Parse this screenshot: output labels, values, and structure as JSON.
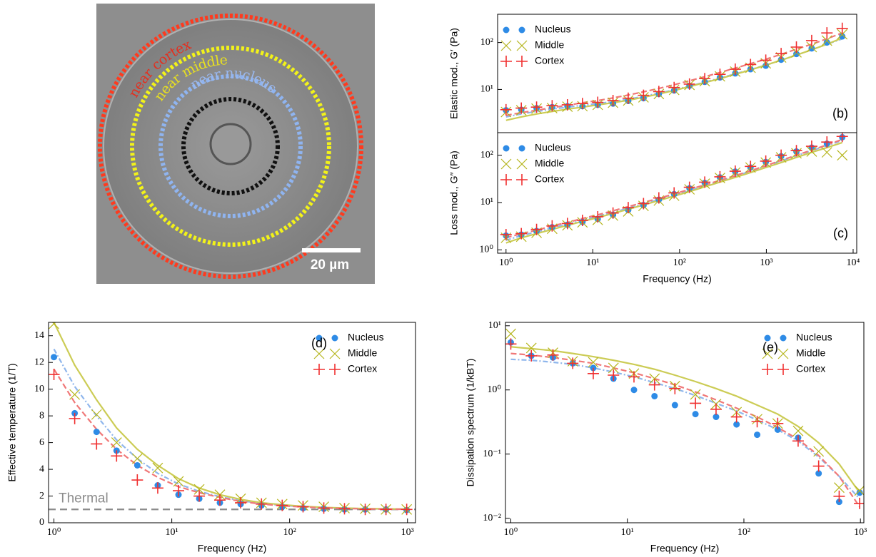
{
  "image": {
    "labels": [
      "near cortex",
      "near middle",
      "near nucleus"
    ],
    "scale_bar": "20 µm"
  },
  "chart_data": [
    {
      "type": "scatter",
      "panel": "(b)",
      "ylabel": "Elastic mod., G′ (Pa)",
      "log_x": true,
      "log_y": true,
      "legend": "upper left",
      "x": [
        1,
        1.5,
        2.25,
        3.4,
        5.1,
        7.6,
        11.4,
        17.1,
        25.6,
        38.4,
        57.7,
        86.5,
        130,
        195,
        292,
        438,
        657,
        985,
        1480,
        2220,
        3330,
        4990,
        7490
      ],
      "xlim": [
        0.8,
        11000
      ],
      "ylim": [
        1.2,
        400
      ],
      "yticks": [
        {
          "value": 10,
          "label": "10¹"
        },
        {
          "value": 100,
          "label": "10²"
        }
      ],
      "series": [
        {
          "name": "Nucleus",
          "color": "#2e8be6",
          "marker": "circle",
          "fit_color": "#8fb6ec",
          "fit_dash": "7 3 2 3",
          "values": [
            3.6,
            3.7,
            4.0,
            4.2,
            4.4,
            4.4,
            4.7,
            5.0,
            5.7,
            6.5,
            8,
            9.5,
            12,
            14.5,
            18,
            22,
            27,
            32,
            43,
            57,
            75,
            100,
            135
          ],
          "fit": [
            2.6,
            3.0,
            3.4,
            3.8,
            4.2,
            4.6,
            5.0,
            5.5,
            6.2,
            7.1,
            8.3,
            9.8,
            11.8,
            14.3,
            17.5,
            21.5,
            26.5,
            33,
            42,
            54,
            70,
            92,
            120
          ]
        },
        {
          "name": "Middle",
          "color": "#b5b51c",
          "marker": "x",
          "fit_color": "#cccc55",
          "fit_dash": "",
          "values": [
            3.3,
            3.6,
            3.9,
            4.0,
            4.3,
            4.4,
            4.7,
            5.2,
            5.8,
            6.8,
            8,
            9.8,
            12.5,
            15,
            19,
            24,
            29,
            36,
            48,
            62,
            80,
            110,
            150
          ],
          "fit": [
            2.2,
            2.6,
            3.0,
            3.4,
            3.8,
            4.2,
            4.7,
            5.2,
            5.9,
            6.8,
            8,
            9.5,
            11.5,
            14,
            17,
            21,
            26,
            33,
            42,
            54,
            70,
            92,
            125
          ]
        },
        {
          "name": "Cortex",
          "color": "#f03030",
          "marker": "plus",
          "fit_color": "#f07878",
          "fit_dash": "8 4",
          "values": [
            3.7,
            4.0,
            4.2,
            4.5,
            4.7,
            5.0,
            5.3,
            5.8,
            6.5,
            7.5,
            9,
            11,
            13,
            17,
            21,
            27,
            34,
            42,
            58,
            80,
            110,
            160,
            200
          ],
          "fit": [
            2.8,
            3.2,
            3.6,
            4.1,
            4.6,
            5.2,
            5.8,
            6.6,
            7.6,
            8.9,
            10.5,
            12.6,
            15.3,
            18.7,
            23,
            28.5,
            35.5,
            44,
            56,
            72,
            92,
            120,
            160
          ]
        }
      ]
    },
    {
      "type": "scatter",
      "panel": "(c)",
      "ylabel": "Loss mod., G″ (Pa)",
      "xlabel": "Frequency (Hz)",
      "log_x": true,
      "log_y": true,
      "legend": "upper left",
      "x": [
        1,
        1.5,
        2.25,
        3.4,
        5.1,
        7.6,
        11.4,
        17.1,
        25.6,
        38.4,
        57.7,
        86.5,
        130,
        195,
        292,
        438,
        657,
        985,
        1480,
        2220,
        3330,
        4990,
        7490
      ],
      "xlim": [
        0.8,
        11000
      ],
      "ylim": [
        0.85,
        300
      ],
      "xticks": [
        {
          "value": 1,
          "label": "10⁰"
        },
        {
          "value": 10,
          "label": "10¹"
        },
        {
          "value": 100,
          "label": "10²"
        },
        {
          "value": 1000,
          "label": "10³"
        },
        {
          "value": 10000,
          "label": "10⁴"
        }
      ],
      "yticks": [
        {
          "value": 1,
          "label": "10⁰"
        },
        {
          "value": 10,
          "label": "10¹"
        },
        {
          "value": 100,
          "label": "10²"
        }
      ],
      "series": [
        {
          "name": "Nucleus",
          "color": "#2e8be6",
          "marker": "circle",
          "fit_color": "#8fb6ec",
          "fit_dash": "7 3 2 3",
          "values": [
            2.0,
            2.1,
            2.5,
            3.0,
            3.4,
            3.9,
            4.5,
            5.5,
            7,
            8.8,
            11.5,
            15,
            20,
            26,
            34,
            45,
            55,
            72,
            95,
            120,
            145,
            175,
            240
          ],
          "fit": [
            1.6,
            2.0,
            2.4,
            2.9,
            3.5,
            4.2,
            5.1,
            6.2,
            7.6,
            9.3,
            11.5,
            14.3,
            18,
            22.5,
            28.5,
            36,
            46,
            59,
            76,
            98,
            125,
            160,
            205
          ]
        },
        {
          "name": "Middle",
          "color": "#b5b51c",
          "marker": "x",
          "fit_color": "#cccc55",
          "fit_dash": "",
          "values": [
            1.8,
            1.9,
            2.3,
            2.8,
            3.3,
            3.8,
            4.3,
            5.3,
            6.5,
            8.5,
            11,
            14,
            19,
            25,
            33,
            43,
            55,
            70,
            90,
            110,
            120,
            115,
            100
          ],
          "fit": [
            1.4,
            1.8,
            2.2,
            2.7,
            3.3,
            4.0,
            4.8,
            5.9,
            7.2,
            8.9,
            11,
            13.7,
            17,
            21.5,
            27,
            34,
            43,
            55,
            70,
            90,
            115,
            145,
            185
          ]
        },
        {
          "name": "Cortex",
          "color": "#f03030",
          "marker": "plus",
          "fit_color": "#f07878",
          "fit_dash": "8 4",
          "values": [
            2.1,
            2.2,
            2.7,
            3.2,
            3.6,
            4.2,
            5.0,
            6.0,
            7.8,
            9.5,
            12.5,
            16,
            21,
            27,
            35,
            46,
            58,
            75,
            100,
            125,
            155,
            190,
            250
          ],
          "fit": [
            1.8,
            2.2,
            2.6,
            3.2,
            3.8,
            4.6,
            5.5,
            6.7,
            8.2,
            10,
            12.3,
            15.2,
            19,
            23.5,
            29.5,
            37,
            47,
            60,
            78,
            100,
            128,
            165,
            215
          ]
        }
      ]
    },
    {
      "type": "scatter",
      "panel": "(d)",
      "ylabel": "Effective temperature (1/T)",
      "xlabel": "Frequency (Hz)",
      "log_x": true,
      "log_y": false,
      "legend": "upper right",
      "thermal": {
        "label": "Thermal",
        "value": 1,
        "color": "#8c8c8c"
      },
      "x": [
        1,
        1.5,
        2.3,
        3.4,
        5.1,
        7.6,
        11.4,
        17.1,
        25.6,
        38.4,
        57.7,
        86.5,
        130,
        195,
        292,
        438,
        657,
        985
      ],
      "xlim": [
        0.9,
        1170
      ],
      "ylim": [
        0,
        15
      ],
      "xticks": [
        {
          "value": 1,
          "label": "10⁰"
        },
        {
          "value": 10,
          "label": "10¹"
        },
        {
          "value": 100,
          "label": "10²"
        },
        {
          "value": 1000,
          "label": "10³"
        }
      ],
      "yticks": [
        0,
        2,
        4,
        6,
        8,
        10,
        12,
        14
      ],
      "series": [
        {
          "name": "Nucleus",
          "color": "#2e8be6",
          "marker": "circle",
          "fit_color": "#8fb6ec",
          "fit_dash": "7 3 2 3",
          "values": [
            12.4,
            8.2,
            6.8,
            5.4,
            4.3,
            2.8,
            2.1,
            1.8,
            1.5,
            1.4,
            1.3,
            1.2,
            1.1,
            1.05,
            1.0,
            1.0,
            1.0,
            0.95
          ],
          "fit": [
            13,
            10.2,
            8,
            6.2,
            4.8,
            3.7,
            2.9,
            2.35,
            1.95,
            1.65,
            1.45,
            1.3,
            1.2,
            1.13,
            1.08,
            1.05,
            1.03,
            1.02
          ]
        },
        {
          "name": "Middle",
          "color": "#b5b51c",
          "marker": "x",
          "fit_color": "#cccc55",
          "fit_dash": "",
          "values": [
            14.9,
            9.6,
            8.1,
            6.0,
            4.8,
            4.1,
            3.1,
            2.5,
            2.1,
            1.8,
            1.5,
            1.4,
            1.3,
            1.2,
            1.1,
            1.05,
            1.0,
            1.0
          ],
          "fit": [
            15,
            11.8,
            9.2,
            7.1,
            5.5,
            4.3,
            3.3,
            2.6,
            2.1,
            1.75,
            1.5,
            1.35,
            1.23,
            1.15,
            1.1,
            1.06,
            1.04,
            1.02
          ]
        },
        {
          "name": "Cortex",
          "color": "#f03030",
          "marker": "plus",
          "fit_color": "#f07878",
          "fit_dash": "8 4",
          "values": [
            11.1,
            7.8,
            5.9,
            5.0,
            3.2,
            2.6,
            2.4,
            2.0,
            1.7,
            1.5,
            1.4,
            1.3,
            1.2,
            1.1,
            1.05,
            1.0,
            1.0,
            1.0
          ],
          "fit": [
            11.5,
            9,
            7,
            5.5,
            4.3,
            3.4,
            2.7,
            2.25,
            1.9,
            1.6,
            1.4,
            1.27,
            1.18,
            1.11,
            1.07,
            1.04,
            1.02,
            1.01
          ]
        }
      ]
    },
    {
      "type": "scatter",
      "panel": "(e)",
      "ylabel": "Dissipation spectrum (1/kBT)",
      "xlabel": "Frequency (Hz)",
      "log_x": true,
      "log_y": true,
      "legend": "upper right",
      "x": [
        1,
        1.5,
        2.3,
        3.4,
        5.1,
        7.6,
        11.4,
        17.1,
        25.6,
        38.4,
        57.7,
        86.5,
        130,
        195,
        292,
        438,
        657,
        985
      ],
      "xlim": [
        0.9,
        1070
      ],
      "ylim": [
        0.0085,
        11.3
      ],
      "xticks": [
        {
          "value": 1,
          "label": "10⁰"
        },
        {
          "value": 10,
          "label": "10¹"
        },
        {
          "value": 100,
          "label": "10²"
        },
        {
          "value": 1000,
          "label": "10³"
        }
      ],
      "yticks": [
        {
          "value": 0.01,
          "label": "10⁻²"
        },
        {
          "value": 0.1,
          "label": "10⁻¹"
        },
        {
          "value": 1,
          "label": "10⁰"
        },
        {
          "value": 10,
          "label": "10¹"
        }
      ],
      "series": [
        {
          "name": "Nucleus",
          "color": "#2e8be6",
          "marker": "circle",
          "fit_color": "#8fb6ec",
          "fit_dash": "7 3 2 3",
          "values": [
            5.5,
            3.4,
            3.2,
            2.6,
            2.2,
            1.5,
            1.0,
            0.8,
            0.58,
            0.42,
            0.38,
            0.29,
            0.2,
            0.24,
            0.18,
            0.05,
            0.018,
            0.025
          ],
          "fit": [
            3.0,
            2.9,
            2.7,
            2.5,
            2.2,
            1.9,
            1.6,
            1.3,
            1.05,
            0.82,
            0.62,
            0.47,
            0.34,
            0.24,
            0.16,
            0.09,
            0.045,
            0.02
          ]
        },
        {
          "name": "Middle",
          "color": "#b5b51c",
          "marker": "x",
          "fit_color": "#cccc55",
          "fit_dash": "",
          "values": [
            7.5,
            4.5,
            3.8,
            2.8,
            2.7,
            2.2,
            1.8,
            1.5,
            1.15,
            0.85,
            0.6,
            0.45,
            0.35,
            0.3,
            0.23,
            0.11,
            0.03,
            0.027
          ],
          "fit": [
            4.7,
            4.4,
            4.1,
            3.7,
            3.3,
            2.9,
            2.5,
            2.1,
            1.7,
            1.35,
            1.05,
            0.8,
            0.58,
            0.42,
            0.27,
            0.15,
            0.07,
            0.025
          ]
        },
        {
          "name": "Cortex",
          "color": "#f03030",
          "marker": "plus",
          "fit_color": "#f07878",
          "fit_dash": "8 4",
          "values": [
            5.2,
            3.4,
            3.5,
            2.6,
            1.8,
            1.7,
            1.6,
            1.2,
            1.05,
            0.62,
            0.5,
            0.38,
            0.32,
            0.3,
            0.16,
            0.065,
            0.022,
            0.017
          ],
          "fit": [
            3.7,
            3.5,
            3.2,
            2.9,
            2.6,
            2.2,
            1.85,
            1.5,
            1.2,
            0.93,
            0.7,
            0.52,
            0.38,
            0.26,
            0.17,
            0.095,
            0.045,
            0.015
          ]
        }
      ]
    }
  ]
}
